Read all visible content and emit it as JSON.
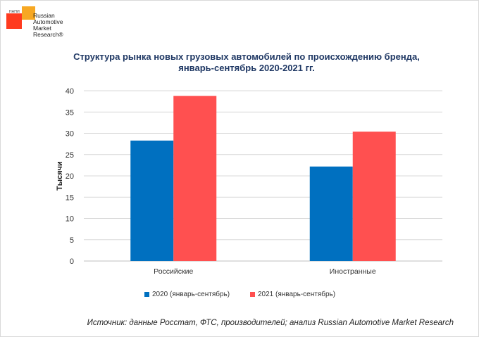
{
  "logo": {
    "mark": "НАПИ",
    "lines": [
      "Russian",
      "Automotive",
      "Market",
      "Research®"
    ]
  },
  "chart_data": {
    "type": "bar",
    "title": "Структура рынка новых грузовых автомобилей по происхождению бренда,",
    "subtitle": "январь-сентябрь 2020-2021 гг.",
    "ylabel": "Тысячи",
    "xlabel": "",
    "ylim": [
      0,
      40
    ],
    "yticks": [
      0,
      5,
      10,
      15,
      20,
      25,
      30,
      35,
      40
    ],
    "categories": [
      "Российские",
      "Иностранные"
    ],
    "series": [
      {
        "name": "2020 (январь-сентябрь)",
        "color": "#0070c0",
        "values": [
          28.3,
          22.2
        ]
      },
      {
        "name": "2021 (январь-сентябрь)",
        "color": "#ff5050",
        "values": [
          38.8,
          30.4
        ]
      }
    ],
    "grid": true,
    "legend_position": "bottom"
  },
  "source": "Источник: данные Росстат, ФТС, производителей; анализ Russian Automotive Market Research"
}
